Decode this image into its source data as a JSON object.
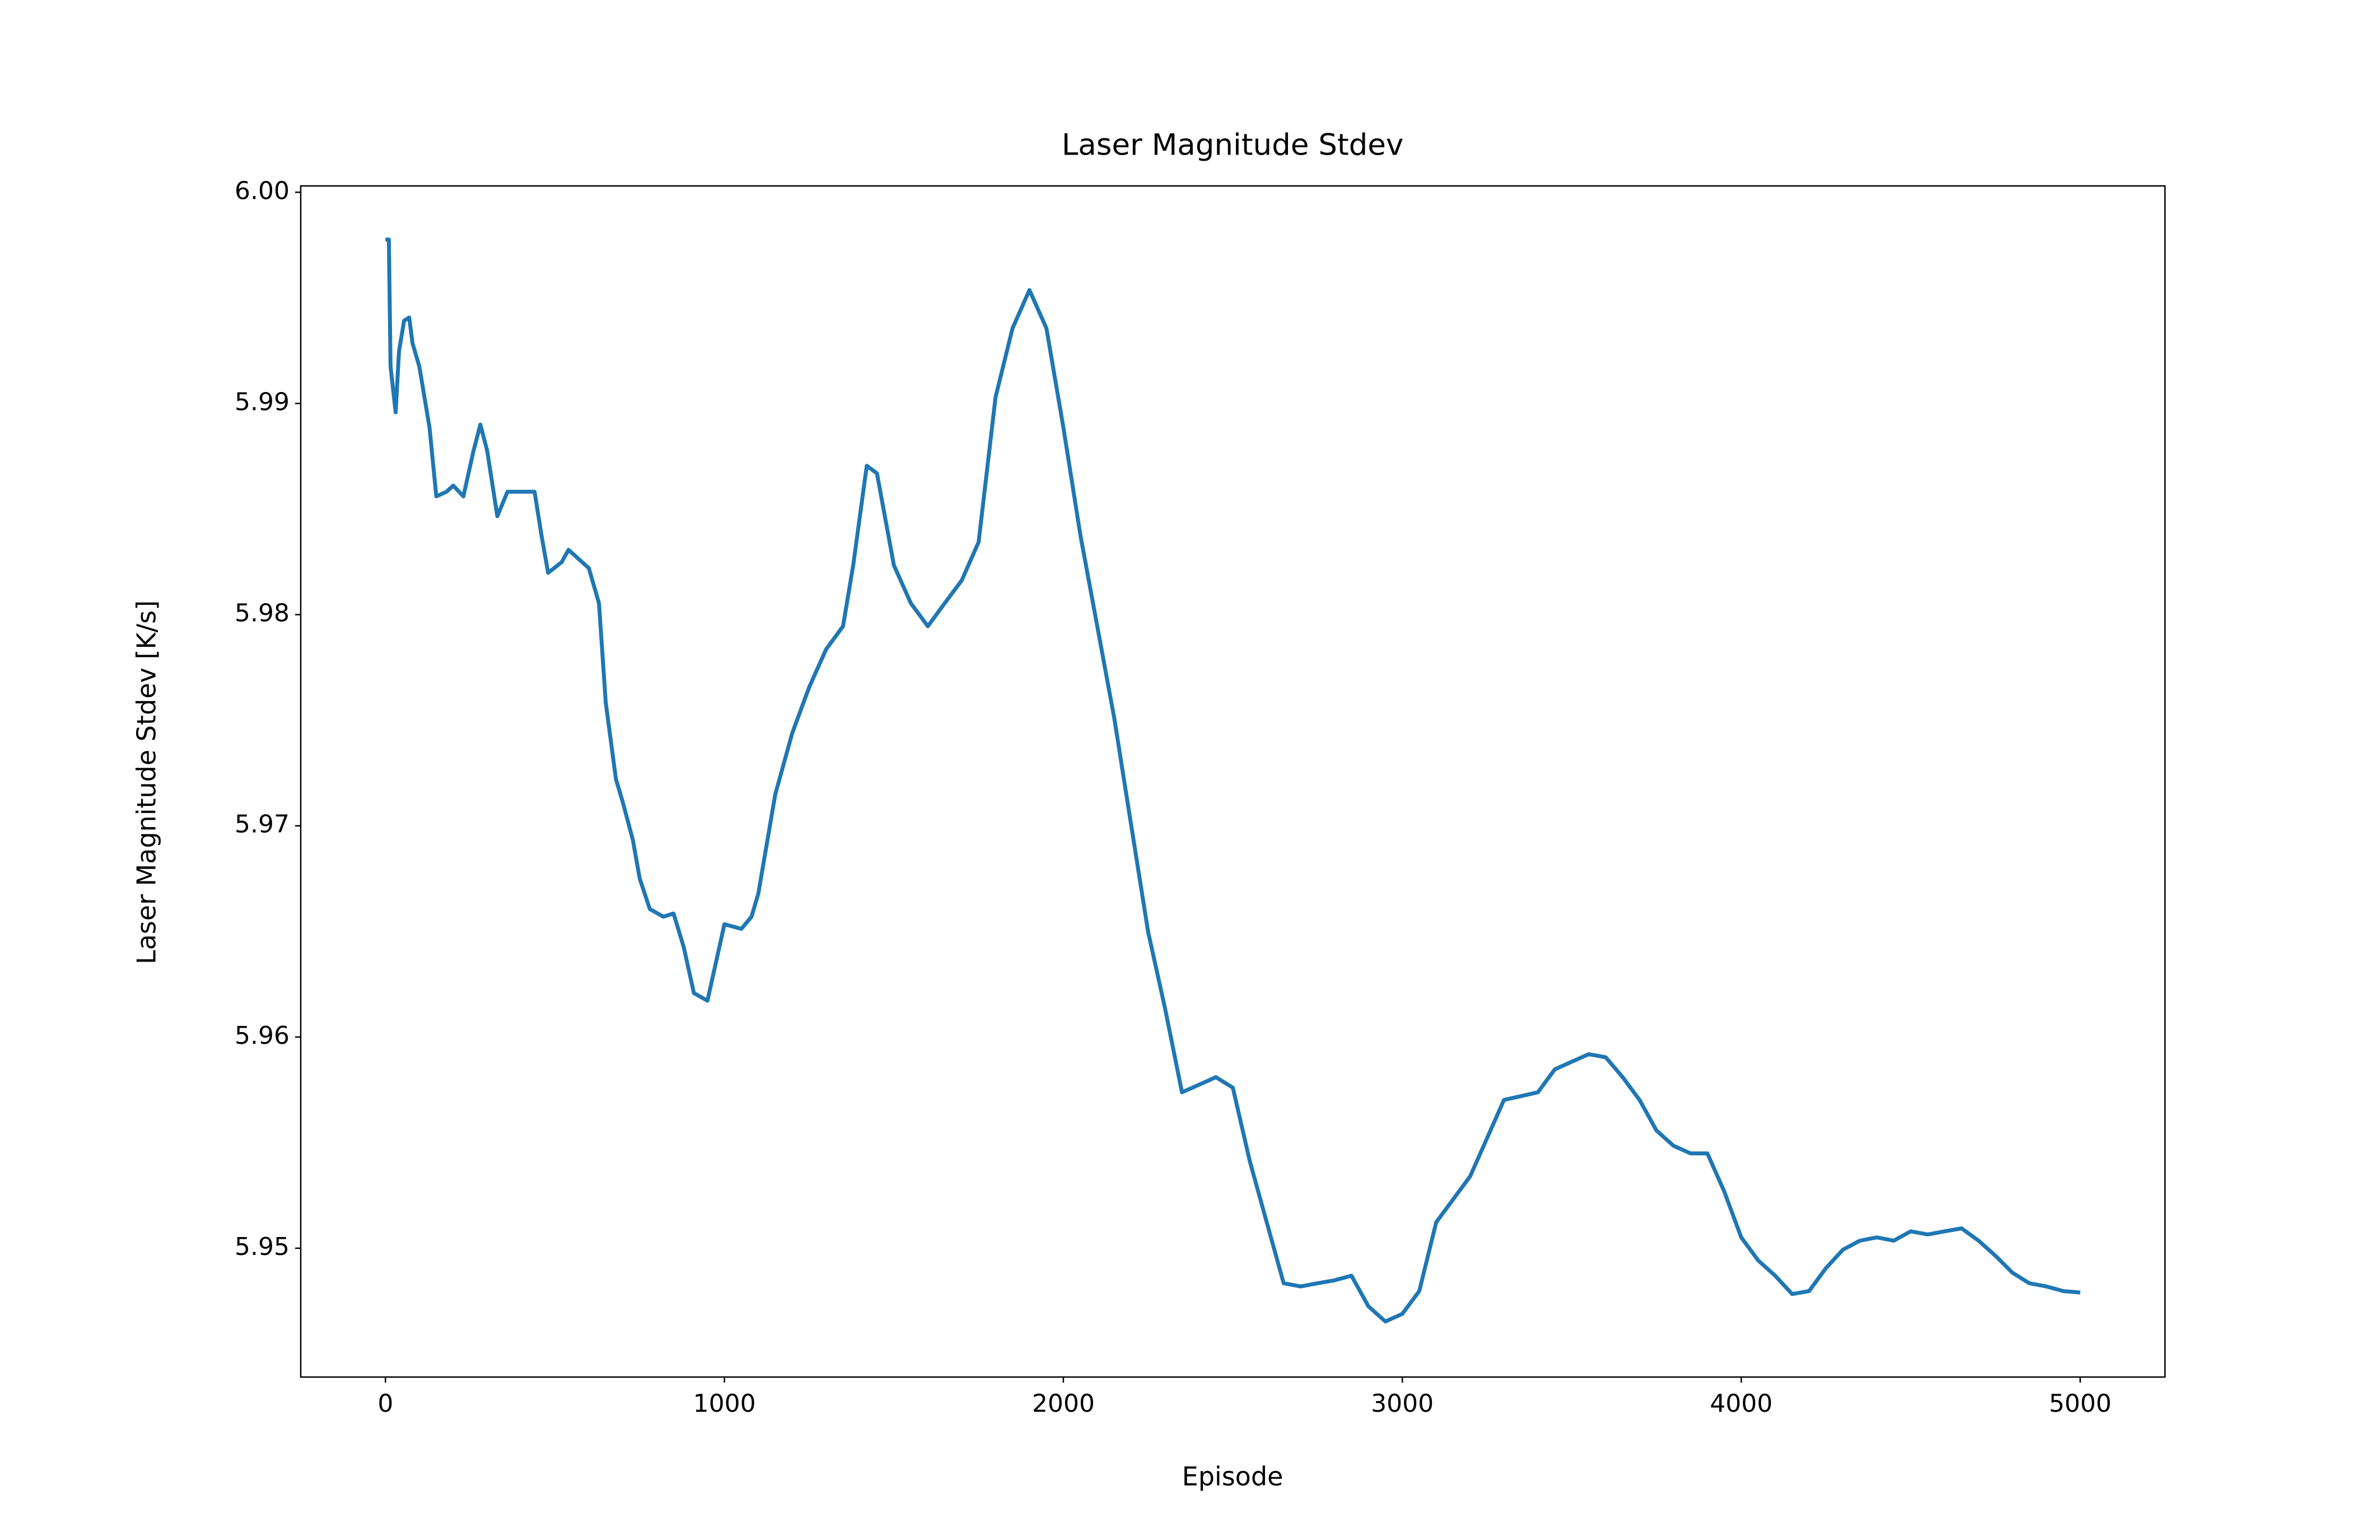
{
  "chart_data": {
    "type": "line",
    "title": "Laser Magnitude Stdev",
    "xlabel": "Episode",
    "ylabel": "Laser Magnitude Stdev [K/s]",
    "x": [
      0,
      10,
      15,
      30,
      40,
      55,
      70,
      80,
      100,
      130,
      150,
      180,
      200,
      230,
      260,
      280,
      300,
      330,
      360,
      400,
      440,
      460,
      480,
      520,
      540,
      580,
      600,
      630,
      650,
      680,
      700,
      730,
      750,
      780,
      820,
      850,
      880,
      910,
      950,
      1000,
      1050,
      1080,
      1100,
      1150,
      1200,
      1250,
      1300,
      1350,
      1380,
      1420,
      1450,
      1500,
      1550,
      1600,
      1650,
      1700,
      1750,
      1800,
      1850,
      1900,
      1950,
      2000,
      2050,
      2100,
      2150,
      2200,
      2250,
      2300,
      2350,
      2400,
      2450,
      2500,
      2550,
      2600,
      2650,
      2700,
      2750,
      2800,
      2850,
      2900,
      2950,
      3000,
      3050,
      3100,
      3200,
      3300,
      3400,
      3450,
      3500,
      3550,
      3600,
      3650,
      3700,
      3750,
      3800,
      3850,
      3900,
      3950,
      4000,
      4050,
      4100,
      4150,
      4200,
      4250,
      4300,
      4350,
      4400,
      4450,
      4500,
      4550,
      4600,
      4650,
      4700,
      4750,
      4800,
      4850,
      4900,
      4950,
      5000
    ],
    "series": [
      {
        "name": "Laser Magnitude Stdev",
        "color": "#1f77b4",
        "values": [
          5.99776,
          5.99776,
          5.99175,
          5.98958,
          5.99247,
          5.99392,
          5.99407,
          5.99284,
          5.99175,
          5.98886,
          5.9856,
          5.98582,
          5.98611,
          5.9856,
          5.98777,
          5.989,
          5.98777,
          5.98466,
          5.98582,
          5.98582,
          5.98582,
          5.98379,
          5.98198,
          5.98249,
          5.98307,
          5.98249,
          5.9822,
          5.98054,
          5.97583,
          5.97221,
          5.97113,
          5.96932,
          5.96751,
          5.96606,
          5.9657,
          5.96585,
          5.96425,
          5.96208,
          5.96172,
          5.96534,
          5.96512,
          5.9657,
          5.96679,
          5.97149,
          5.97438,
          5.97656,
          5.97836,
          5.97945,
          5.98234,
          5.98705,
          5.98669,
          5.98234,
          5.98054,
          5.97945,
          5.98054,
          5.98162,
          5.98343,
          5.9903,
          5.99356,
          5.99537,
          5.99356,
          5.98886,
          5.98379,
          5.97945,
          5.97511,
          5.97004,
          5.96498,
          5.96136,
          5.95738,
          5.95774,
          5.9581,
          5.9576,
          5.95412,
          5.95123,
          5.94834,
          5.94819,
          5.94834,
          5.94848,
          5.9487,
          5.94725,
          5.94653,
          5.94689,
          5.94797,
          5.95123,
          5.9534,
          5.95702,
          5.95738,
          5.95847,
          5.95883,
          5.95919,
          5.95904,
          5.9581,
          5.95702,
          5.95557,
          5.95485,
          5.95449,
          5.95449,
          5.95268,
          5.95051,
          5.94942,
          5.9487,
          5.94783,
          5.94797,
          5.94906,
          5.94993,
          5.95036,
          5.95051,
          5.95036,
          5.9508,
          5.95065,
          5.9508,
          5.95094,
          5.95036,
          5.94964,
          5.94884,
          5.94834,
          5.94819,
          5.94797,
          5.9479
        ]
      }
    ],
    "xlim": [
      -250,
      5250
    ],
    "ylim": [
      5.9439,
      6.0003
    ],
    "xticks": [
      0,
      1000,
      2000,
      3000,
      4000,
      5000
    ],
    "yticks": [
      5.95,
      5.96,
      5.97,
      5.98,
      5.99,
      {
        "value": 6,
        "label": "6.00"
      }
    ],
    "grid": false
  }
}
